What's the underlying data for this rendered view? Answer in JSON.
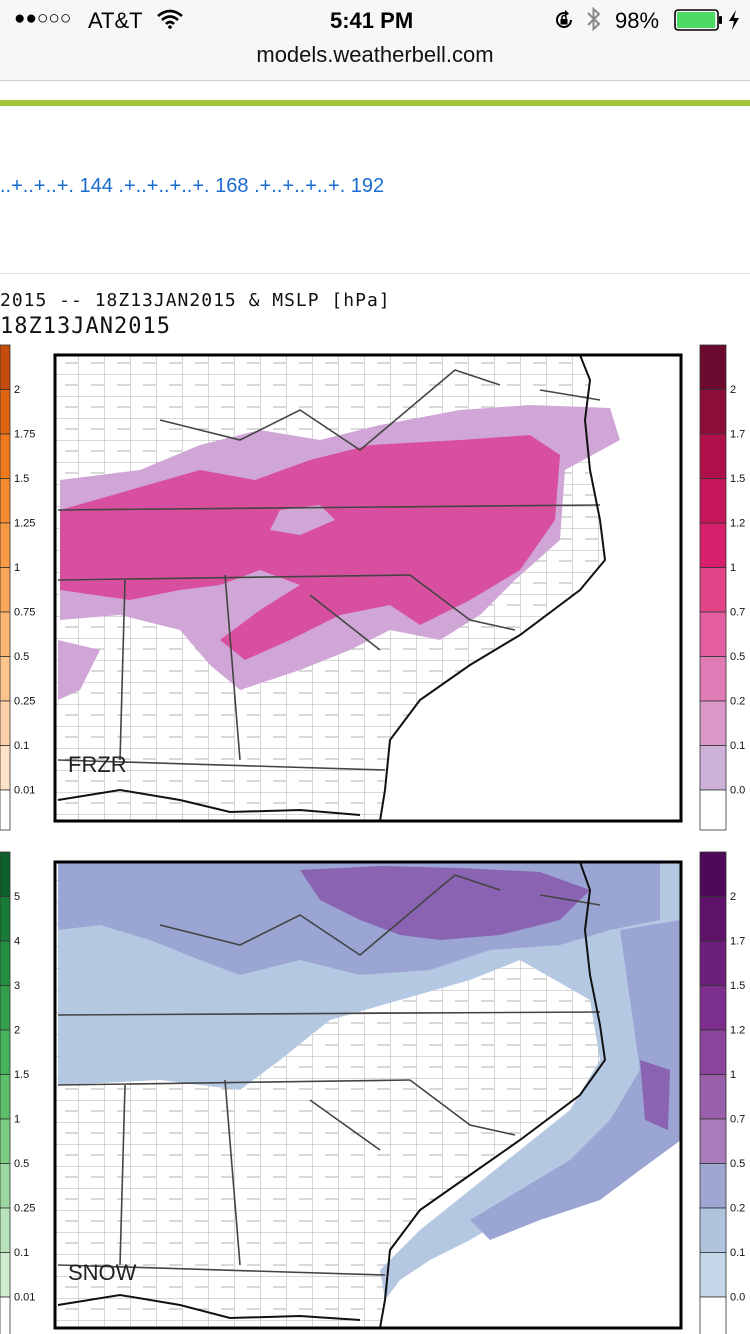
{
  "status_bar": {
    "signal_dots": "●●○○○",
    "carrier": "AT&T",
    "time": "5:41 PM",
    "battery_percent": "98%",
    "battery_level": 0.98
  },
  "address_bar": {
    "url": "models.weatherbell.com"
  },
  "frame_links": "..+..+..+. 144 .+..+..+..+. 168 .+..+..+..+. 192",
  "map_title": {
    "line1": "2015 -- 18Z13JAN2015 & MSLP [hPa]",
    "line2": "18Z13JAN2015"
  },
  "panels": [
    {
      "label": "FRZR",
      "left_scale": [
        "2",
        "1.75",
        "1.5",
        "1.25",
        "1",
        "0.75",
        "0.5",
        "0.25",
        "0.1",
        "0.01"
      ],
      "right_scale": [
        "2",
        "1.7",
        "1.5",
        "1.2",
        "1",
        "0.7",
        "0.5",
        "0.2",
        "0.1",
        "0.0"
      ],
      "left_colors": [
        "#c64c0c",
        "#e06512",
        "#f07a1c",
        "#f58b2e",
        "#f89a43",
        "#f9a85a",
        "#fab673",
        "#fcc48d",
        "#fdd2aa",
        "#fee3c8"
      ],
      "right_colors": [
        "#6b0a2e",
        "#8e0c3a",
        "#b0104a",
        "#c7165a",
        "#d81f6b",
        "#e2448a",
        "#e55ea1",
        "#e07bb6",
        "#d998c8",
        "#ceb1d8"
      ]
    },
    {
      "label": "SNOW",
      "left_scale": [
        "5",
        "4",
        "3",
        "2",
        "1.5",
        "1",
        "0.5",
        "0.25",
        "0.1",
        "0.01"
      ],
      "right_scale": [
        "2",
        "1.7",
        "1.5",
        "1.2",
        "1",
        "0.7",
        "0.5",
        "0.2",
        "0.1",
        "0.0"
      ],
      "left_colors": [
        "#0d5e2a",
        "#177a36",
        "#238d40",
        "#33a04c",
        "#47b15b",
        "#5ebf6b",
        "#7dcc83",
        "#9bd8a0",
        "#b7e3b9",
        "#d0edd0"
      ],
      "right_colors": [
        "#4d0a57",
        "#5e126a",
        "#6d1f7c",
        "#7b2e8b",
        "#8a449b",
        "#9a5fab",
        "#a97dbb",
        "#9ea6d2",
        "#b0c4de",
        "#c4d6e8"
      ]
    }
  ],
  "colors": {
    "frzr_heavy": "#d94fa0",
    "frzr_light": "#cfa6d6",
    "snow_light": "#b5c8e2",
    "snow_mid": "#9aa5d3",
    "snow_heavy": "#8a63b3",
    "link_blue": "#1a6bd1",
    "accent_green": "#a3c43a"
  },
  "icons": [
    "wifi-icon",
    "lock-rotation-icon",
    "bluetooth-icon",
    "battery-icon",
    "charging-bolt-icon"
  ]
}
